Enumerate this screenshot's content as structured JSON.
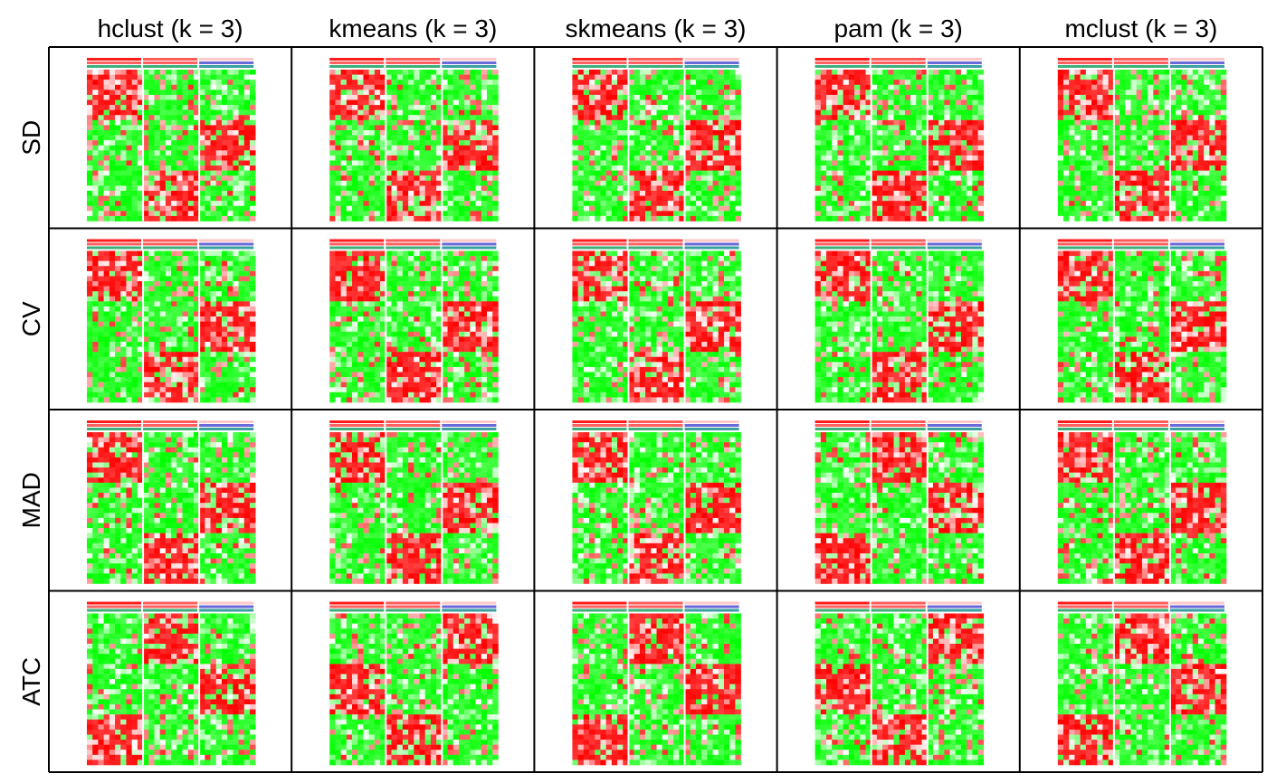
{
  "chart_data": {
    "type": "heatmap",
    "title": "",
    "columns": [
      "hclust (k = 3)",
      "kmeans (k = 3)",
      "skmeans (k = 3)",
      "pam (k = 3)",
      "mclust (k = 3)"
    ],
    "rows": [
      "SD",
      "CV",
      "MAD",
      "ATC"
    ],
    "k": 3,
    "colors": {
      "high": "#ff0000",
      "low": "#00ff00",
      "mid": "#ffffff",
      "border": "#000000"
    },
    "panels": [
      {
        "row": "SD",
        "column": "hclust (k = 3)",
        "cluster_sizes": [
          1,
          1,
          1
        ],
        "red_blocks": [
          [
            1,
            1
          ],
          [
            3,
            2
          ],
          [
            2,
            3
          ]
        ]
      },
      {
        "row": "SD",
        "column": "kmeans (k = 3)",
        "cluster_sizes": [
          1,
          1,
          1
        ],
        "red_blocks": [
          [
            1,
            1
          ],
          [
            3,
            2
          ],
          [
            2,
            3
          ]
        ]
      },
      {
        "row": "SD",
        "column": "skmeans (k = 3)",
        "cluster_sizes": [
          1,
          1,
          1
        ],
        "red_blocks": [
          [
            1,
            1
          ],
          [
            3,
            2
          ],
          [
            2,
            3
          ]
        ]
      },
      {
        "row": "SD",
        "column": "pam (k = 3)",
        "cluster_sizes": [
          1,
          1,
          1
        ],
        "red_blocks": [
          [
            1,
            1
          ],
          [
            3,
            2
          ],
          [
            2,
            3
          ]
        ]
      },
      {
        "row": "SD",
        "column": "mclust (k = 3)",
        "cluster_sizes": [
          1,
          1,
          1
        ],
        "red_blocks": [
          [
            1,
            1
          ],
          [
            3,
            2
          ],
          [
            2,
            3
          ]
        ]
      },
      {
        "row": "CV",
        "column": "hclust (k = 3)",
        "cluster_sizes": [
          1,
          1,
          1
        ],
        "red_blocks": [
          [
            1,
            1
          ],
          [
            3,
            2
          ],
          [
            2,
            3
          ]
        ]
      },
      {
        "row": "CV",
        "column": "kmeans (k = 3)",
        "cluster_sizes": [
          1,
          1,
          1
        ],
        "red_blocks": [
          [
            1,
            1
          ],
          [
            3,
            2
          ],
          [
            2,
            3
          ]
        ]
      },
      {
        "row": "CV",
        "column": "skmeans (k = 3)",
        "cluster_sizes": [
          1,
          1,
          1
        ],
        "red_blocks": [
          [
            1,
            1
          ],
          [
            3,
            2
          ],
          [
            2,
            3
          ]
        ]
      },
      {
        "row": "CV",
        "column": "pam (k = 3)",
        "cluster_sizes": [
          1,
          1,
          1
        ],
        "red_blocks": [
          [
            1,
            1
          ],
          [
            3,
            2
          ],
          [
            2,
            3
          ]
        ]
      },
      {
        "row": "CV",
        "column": "mclust (k = 3)",
        "cluster_sizes": [
          1,
          1,
          1
        ],
        "red_blocks": [
          [
            1,
            1
          ],
          [
            3,
            2
          ],
          [
            2,
            3
          ]
        ]
      },
      {
        "row": "MAD",
        "column": "hclust (k = 3)",
        "cluster_sizes": [
          1,
          1,
          1
        ],
        "red_blocks": [
          [
            1,
            1
          ],
          [
            3,
            2
          ],
          [
            2,
            3
          ]
        ]
      },
      {
        "row": "MAD",
        "column": "kmeans (k = 3)",
        "cluster_sizes": [
          1,
          1,
          1
        ],
        "red_blocks": [
          [
            1,
            1
          ],
          [
            3,
            2
          ],
          [
            2,
            3
          ]
        ]
      },
      {
        "row": "MAD",
        "column": "skmeans (k = 3)",
        "cluster_sizes": [
          1,
          1,
          1
        ],
        "red_blocks": [
          [
            1,
            1
          ],
          [
            3,
            2
          ],
          [
            2,
            3
          ]
        ]
      },
      {
        "row": "MAD",
        "column": "pam (k = 3)",
        "cluster_sizes": [
          1,
          1,
          1
        ],
        "red_blocks": [
          [
            3,
            1
          ],
          [
            1,
            2
          ],
          [
            2,
            3
          ]
        ]
      },
      {
        "row": "MAD",
        "column": "mclust (k = 3)",
        "cluster_sizes": [
          1,
          1,
          1
        ],
        "red_blocks": [
          [
            1,
            1
          ],
          [
            3,
            2
          ],
          [
            2,
            3
          ]
        ]
      },
      {
        "row": "ATC",
        "column": "hclust (k = 3)",
        "cluster_sizes": [
          1,
          1,
          1
        ],
        "red_blocks": [
          [
            3,
            1
          ],
          [
            1,
            2
          ],
          [
            2,
            3
          ]
        ]
      },
      {
        "row": "ATC",
        "column": "kmeans (k = 3)",
        "cluster_sizes": [
          1,
          1,
          1
        ],
        "red_blocks": [
          [
            2,
            1
          ],
          [
            3,
            2
          ],
          [
            1,
            3
          ]
        ]
      },
      {
        "row": "ATC",
        "column": "skmeans (k = 3)",
        "cluster_sizes": [
          1,
          1,
          1
        ],
        "red_blocks": [
          [
            3,
            1
          ],
          [
            1,
            2
          ],
          [
            2,
            3
          ]
        ]
      },
      {
        "row": "ATC",
        "column": "pam (k = 3)",
        "cluster_sizes": [
          1,
          1,
          1
        ],
        "red_blocks": [
          [
            2,
            1
          ],
          [
            3,
            2
          ],
          [
            1,
            3
          ]
        ]
      },
      {
        "row": "ATC",
        "column": "mclust (k = 3)",
        "cluster_sizes": [
          1,
          1,
          1
        ],
        "red_blocks": [
          [
            3,
            1
          ],
          [
            1,
            2
          ],
          [
            2,
            3
          ]
        ]
      }
    ]
  }
}
